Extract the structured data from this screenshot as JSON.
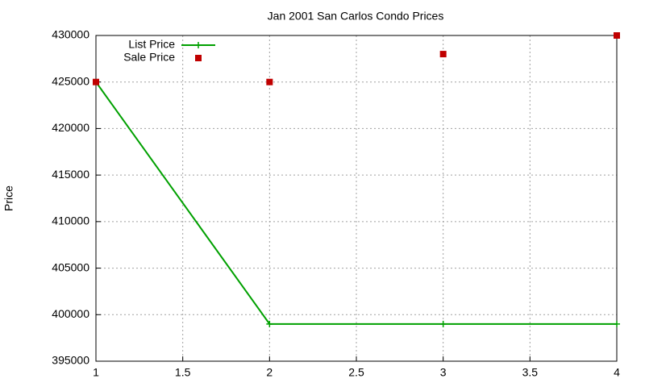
{
  "chart_data": {
    "type": "line",
    "title": "Jan 2001 San Carlos Condo Prices",
    "y_label": "Price",
    "x": [
      1,
      2,
      3,
      4
    ],
    "series": [
      {
        "name": "List Price",
        "color": "#00a000",
        "style": "linespoints",
        "values": [
          425000,
          399000,
          399000,
          399000
        ]
      },
      {
        "name": "Sale Price",
        "color": "#c00000",
        "style": "points",
        "values": [
          425000,
          425000,
          428000,
          430000
        ]
      }
    ],
    "xlim": [
      1,
      4
    ],
    "xticks": [
      1,
      1.5,
      2,
      2.5,
      3,
      3.5,
      4
    ],
    "ylim": [
      395000,
      430000
    ],
    "yticks": [
      395000,
      400000,
      405000,
      410000,
      415000,
      420000,
      425000,
      430000
    ],
    "grid": true,
    "legend": "top-left"
  }
}
